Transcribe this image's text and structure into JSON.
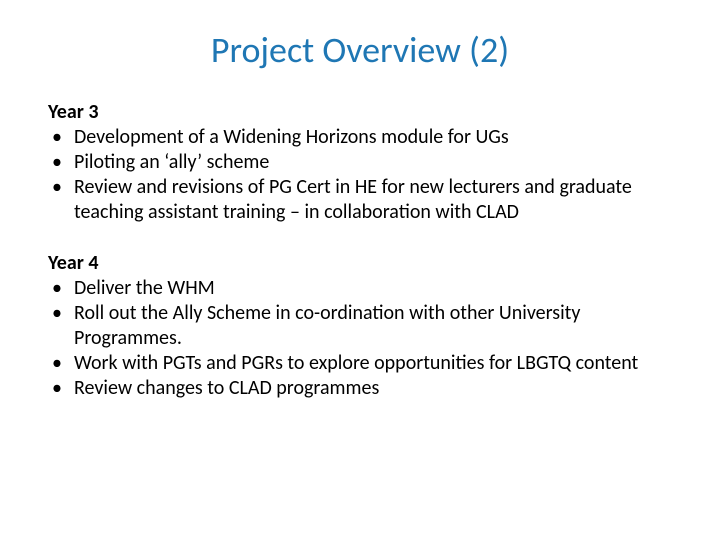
{
  "title": {
    "text": "Project Overview (2)",
    "color": "#1f77b4",
    "fontsize": 36
  },
  "body": {
    "fontsize": 20,
    "text_color": "#000000"
  },
  "sections": [
    {
      "heading": "Year 3",
      "items": [
        "Development of a Widening Horizons module for UGs",
        "Piloting an ‘ally’ scheme",
        "Review and revisions of PG Cert in HE for new lecturers and graduate teaching assistant training – in collaboration with CLAD"
      ]
    },
    {
      "heading": "Year 4",
      "items": [
        "Deliver the WHM",
        "Roll out the Ally Scheme in co-ordination with other University Programmes.",
        "Work with PGTs and PGRs to explore opportunities for LBGTQ content",
        "Review changes to CLAD programmes"
      ]
    }
  ],
  "background_color": "#ffffff"
}
